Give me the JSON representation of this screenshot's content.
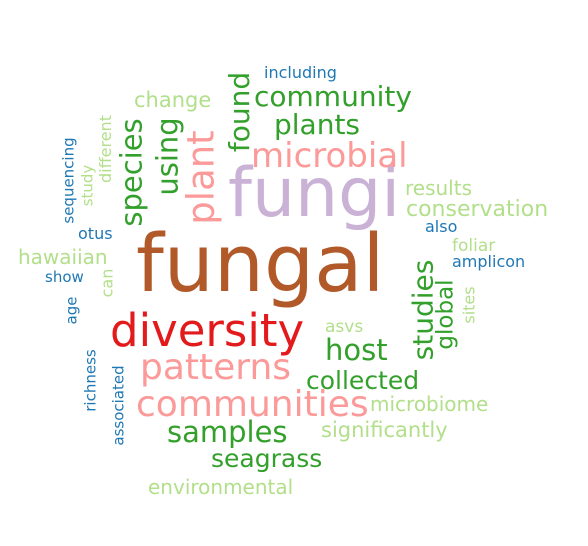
{
  "palette": {
    "dark_green": "#33a02c",
    "light_green": "#b2df8a",
    "dark_blue": "#1f78b4",
    "light_blue": "#a6cee3",
    "red": "#e31a1c",
    "pink": "#fb9a99",
    "brown": "#b15928",
    "lavender": "#cab2d6"
  },
  "words": [
    {
      "text": "fungal",
      "color": "#b15928"
    },
    {
      "text": "fungi",
      "color": "#cab2d6"
    },
    {
      "text": "diversity",
      "color": "#e31a1c"
    },
    {
      "text": "communities",
      "color": "#fb9a99"
    },
    {
      "text": "patterns",
      "color": "#fb9a99"
    },
    {
      "text": "microbial",
      "color": "#fb9a99"
    },
    {
      "text": "plant",
      "color": "#fb9a99"
    },
    {
      "text": "community",
      "color": "#33a02c"
    },
    {
      "text": "plants",
      "color": "#33a02c"
    },
    {
      "text": "samples",
      "color": "#33a02c"
    },
    {
      "text": "host",
      "color": "#33a02c"
    },
    {
      "text": "collected",
      "color": "#33a02c"
    },
    {
      "text": "seagrass",
      "color": "#33a02c"
    },
    {
      "text": "species",
      "color": "#33a02c"
    },
    {
      "text": "using",
      "color": "#33a02c"
    },
    {
      "text": "found",
      "color": "#33a02c"
    },
    {
      "text": "studies",
      "color": "#33a02c"
    },
    {
      "text": "global",
      "color": "#33a02c"
    },
    {
      "text": "conservation",
      "color": "#b2df8a"
    },
    {
      "text": "results",
      "color": "#b2df8a"
    },
    {
      "text": "change",
      "color": "#b2df8a"
    },
    {
      "text": "microbiome",
      "color": "#b2df8a"
    },
    {
      "text": "significantly",
      "color": "#b2df8a"
    },
    {
      "text": "environmental",
      "color": "#b2df8a"
    },
    {
      "text": "hawaiian",
      "color": "#b2df8a"
    },
    {
      "text": "foliar",
      "color": "#b2df8a"
    },
    {
      "text": "asvs",
      "color": "#b2df8a"
    },
    {
      "text": "sites",
      "color": "#b2df8a"
    },
    {
      "text": "can",
      "color": "#b2df8a"
    },
    {
      "text": "study",
      "color": "#b2df8a"
    },
    {
      "text": "different",
      "color": "#b2df8a"
    },
    {
      "text": "including",
      "color": "#1f78b4"
    },
    {
      "text": "amplicon",
      "color": "#1f78b4"
    },
    {
      "text": "also",
      "color": "#1f78b4"
    },
    {
      "text": "otus",
      "color": "#1f78b4"
    },
    {
      "text": "show",
      "color": "#1f78b4"
    },
    {
      "text": "age",
      "color": "#1f78b4"
    },
    {
      "text": "sequencing",
      "color": "#1f78b4"
    },
    {
      "text": "richness",
      "color": "#1f78b4"
    },
    {
      "text": "associated",
      "color": "#1f78b4"
    }
  ]
}
